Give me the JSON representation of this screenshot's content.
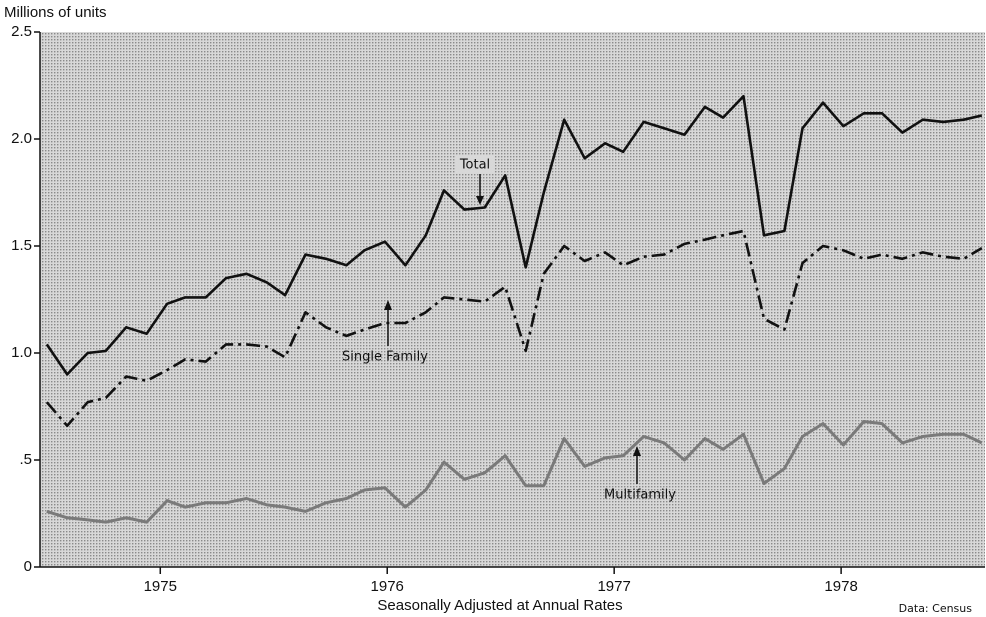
{
  "chart_data": {
    "type": "line",
    "title": "Millions of units",
    "x_label": "Seasonally Adjusted at Annual Rates",
    "source": "Data: Census",
    "x": [
      1974.5,
      1974.59,
      1974.68,
      1974.76,
      1974.85,
      1974.94,
      1975.03,
      1975.11,
      1975.2,
      1975.29,
      1975.38,
      1975.47,
      1975.55,
      1975.64,
      1975.73,
      1975.82,
      1975.9,
      1975.99,
      1976.08,
      1976.17,
      1976.25,
      1976.34,
      1976.43,
      1976.52,
      1976.61,
      1976.69,
      1976.78,
      1976.87,
      1976.96,
      1977.04,
      1977.13,
      1977.22,
      1977.31,
      1977.4,
      1977.48,
      1977.57,
      1977.66,
      1977.75,
      1977.83,
      1977.92,
      1978.01,
      1978.1,
      1978.18,
      1978.27,
      1978.36,
      1978.45,
      1978.54,
      1978.62
    ],
    "series": [
      {
        "name": "Total",
        "color": "#111111",
        "style": "solid",
        "values": [
          1.04,
          0.9,
          1.0,
          1.01,
          1.12,
          1.09,
          1.23,
          1.26,
          1.26,
          1.35,
          1.37,
          1.33,
          1.27,
          1.46,
          1.44,
          1.41,
          1.48,
          1.52,
          1.41,
          1.55,
          1.76,
          1.67,
          1.68,
          1.83,
          1.4,
          1.75,
          2.09,
          1.91,
          1.98,
          1.94,
          2.08,
          2.05,
          2.02,
          2.15,
          2.1,
          2.2,
          1.55,
          1.57,
          2.05,
          2.17,
          2.06,
          2.12,
          2.12,
          2.03,
          2.09,
          2.08,
          2.09,
          2.11
        ]
      },
      {
        "name": "Single Family",
        "color": "#111111",
        "style": "dashdot",
        "values": [
          0.77,
          0.66,
          0.77,
          0.79,
          0.89,
          0.87,
          0.92,
          0.97,
          0.96,
          1.04,
          1.04,
          1.03,
          0.98,
          1.19,
          1.12,
          1.08,
          1.11,
          1.14,
          1.14,
          1.19,
          1.26,
          1.25,
          1.24,
          1.31,
          1.01,
          1.37,
          1.5,
          1.43,
          1.47,
          1.41,
          1.45,
          1.46,
          1.51,
          1.53,
          1.55,
          1.57,
          1.16,
          1.11,
          1.42,
          1.5,
          1.48,
          1.44,
          1.46,
          1.44,
          1.47,
          1.45,
          1.44,
          1.49
        ]
      },
      {
        "name": "Multifamily",
        "color": "#7a7a7a",
        "style": "solid",
        "values": [
          0.26,
          0.23,
          0.22,
          0.21,
          0.23,
          0.21,
          0.31,
          0.28,
          0.3,
          0.3,
          0.32,
          0.29,
          0.28,
          0.26,
          0.3,
          0.32,
          0.36,
          0.37,
          0.28,
          0.36,
          0.49,
          0.41,
          0.44,
          0.52,
          0.38,
          0.38,
          0.6,
          0.47,
          0.51,
          0.52,
          0.61,
          0.58,
          0.5,
          0.6,
          0.55,
          0.62,
          0.39,
          0.46,
          0.61,
          0.67,
          0.57,
          0.68,
          0.67,
          0.58,
          0.61,
          0.62,
          0.62,
          0.58
        ]
      }
    ],
    "xlim": [
      1974.47,
      1978.634
    ],
    "xticks": [
      1975,
      1976,
      1977,
      1978
    ],
    "ylim": [
      0,
      2.5
    ],
    "yticks": [
      0,
      {
        "value": 0.5,
        "label": ".5"
      },
      {
        "value": 1.0,
        "label": "1.0"
      },
      {
        "value": 1.5,
        "label": "1.5"
      },
      {
        "value": 2.0,
        "label": "2.0"
      },
      {
        "value": 2.5,
        "label": "2.5"
      }
    ]
  }
}
